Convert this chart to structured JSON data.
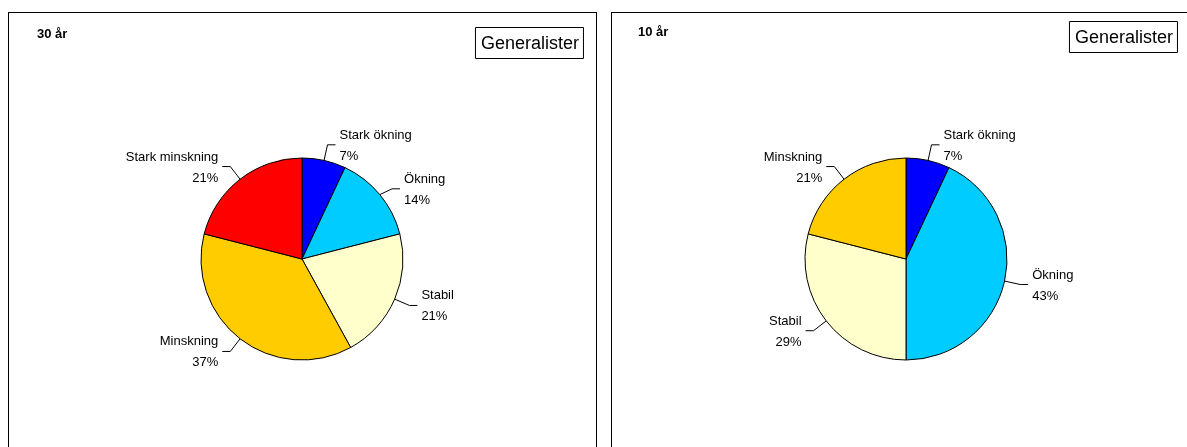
{
  "chart_data": [
    {
      "type": "pie",
      "title": "30 år",
      "subtitle": "Generalister",
      "categories": [
        "Stark ökning",
        "Ökning",
        "Stabil",
        "Minskning",
        "Stark minskning"
      ],
      "values": [
        7,
        14,
        21,
        37,
        21
      ],
      "value_labels": [
        "7%",
        "14%",
        "21%",
        "37%",
        "21%"
      ],
      "colors": [
        "#0000ff",
        "#00ccff",
        "#ffffcc",
        "#ffcc00",
        "#ff0000"
      ]
    },
    {
      "type": "pie",
      "title": "10 år",
      "subtitle": "Generalister",
      "categories": [
        "Stark ökning",
        "Ökning",
        "Stabil",
        "Minskning"
      ],
      "values": [
        7,
        43,
        29,
        21
      ],
      "value_labels": [
        "7%",
        "43%",
        "29%",
        "21%"
      ],
      "colors": [
        "#0000ff",
        "#00ccff",
        "#ffffcc",
        "#ffcc00"
      ]
    }
  ]
}
